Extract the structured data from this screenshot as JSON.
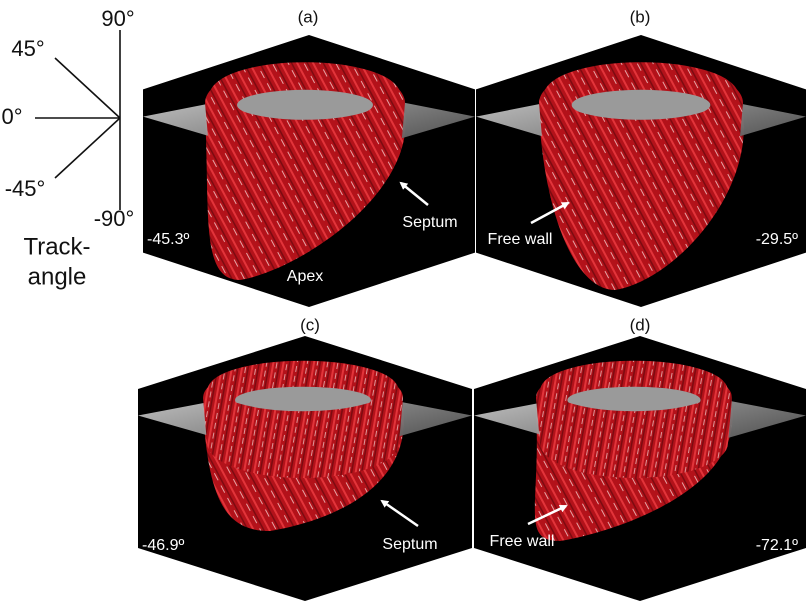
{
  "legend": {
    "angles": [
      "90°",
      "45°",
      "0°",
      "-45°",
      "-90°"
    ],
    "title_lines": [
      "Track-",
      "angle"
    ]
  },
  "panels": [
    {
      "label": "(a)",
      "angle": "-45.3º",
      "annotations": [
        "Septum",
        "Apex"
      ]
    },
    {
      "label": "(b)",
      "angle": "-29.5º",
      "annotations": [
        "Free wall"
      ]
    },
    {
      "label": "(c)",
      "angle": "-46.9º",
      "annotations": [
        "Septum"
      ]
    },
    {
      "label": "(d)",
      "angle": "-72.1º",
      "annotations": [
        "Free wall"
      ]
    }
  ]
}
